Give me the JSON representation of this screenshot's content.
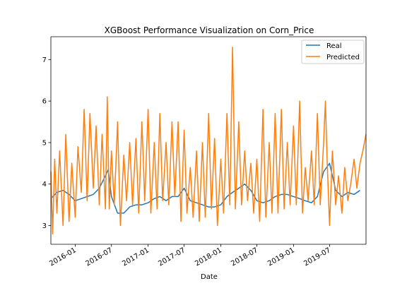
{
  "chart_data": {
    "type": "line",
    "title": "XGBoost Performance Visualization on Corn_Price",
    "xlabel": "Date",
    "ylabel": "",
    "x_range": [
      "2015-09-01",
      "2019-12-31"
    ],
    "ylim": [
      2.55,
      7.55
    ],
    "x_ticks": [
      "2016-01",
      "2016-07",
      "2017-01",
      "2017-07",
      "2018-01",
      "2018-07",
      "2019-01",
      "2019-07"
    ],
    "x_tick_dates": [
      "2016-01-01",
      "2016-07-01",
      "2017-01-01",
      "2017-07-01",
      "2018-01-01",
      "2018-07-01",
      "2019-01-01",
      "2019-07-01"
    ],
    "y_ticks": [
      3,
      4,
      5,
      6,
      7
    ],
    "legend": {
      "placement": "top-right",
      "entries": [
        "Real",
        "Predicted"
      ]
    },
    "colors": {
      "Real": "#1f77b4",
      "Predicted": "#ff7f0e"
    },
    "series": [
      {
        "name": "Real",
        "x": [
          "2015-09-01",
          "2015-10-01",
          "2015-11-01",
          "2015-12-01",
          "2016-01-01",
          "2016-02-01",
          "2016-03-01",
          "2016-04-01",
          "2016-05-01",
          "2016-06-01",
          "2016-06-15",
          "2016-07-01",
          "2016-08-01",
          "2016-09-01",
          "2016-10-01",
          "2016-11-01",
          "2016-12-01",
          "2017-01-01",
          "2017-02-01",
          "2017-03-01",
          "2017-04-01",
          "2017-05-01",
          "2017-06-01",
          "2017-07-01",
          "2017-08-01",
          "2017-09-01",
          "2017-10-01",
          "2017-11-01",
          "2017-12-01",
          "2018-01-01",
          "2018-02-01",
          "2018-03-01",
          "2018-04-01",
          "2018-05-01",
          "2018-06-01",
          "2018-07-01",
          "2018-08-01",
          "2018-09-01",
          "2018-10-01",
          "2018-11-01",
          "2018-12-01",
          "2019-01-01",
          "2019-02-01",
          "2019-03-01",
          "2019-04-01",
          "2019-05-01",
          "2019-06-01",
          "2019-07-01",
          "2019-08-01",
          "2019-09-01",
          "2019-10-01",
          "2019-11-01",
          "2019-12-01"
        ],
        "values": [
          3.65,
          3.8,
          3.85,
          3.75,
          3.6,
          3.65,
          3.7,
          3.75,
          3.9,
          4.2,
          4.35,
          3.7,
          3.3,
          3.3,
          3.45,
          3.5,
          3.5,
          3.55,
          3.65,
          3.7,
          3.6,
          3.7,
          3.7,
          3.9,
          3.6,
          3.55,
          3.5,
          3.45,
          3.45,
          3.5,
          3.7,
          3.8,
          3.9,
          4.0,
          3.85,
          3.6,
          3.55,
          3.6,
          3.7,
          3.75,
          3.75,
          3.7,
          3.65,
          3.6,
          3.55,
          3.7,
          4.3,
          4.5,
          3.85,
          3.7,
          3.8,
          3.75,
          3.85
        ]
      },
      {
        "name": "Predicted",
        "x": [
          "2015-09-01",
          "2015-09-10",
          "2015-09-20",
          "2015-10-01",
          "2015-10-15",
          "2015-11-01",
          "2015-11-15",
          "2015-12-01",
          "2015-12-15",
          "2016-01-01",
          "2016-01-15",
          "2016-02-01",
          "2016-02-15",
          "2016-03-01",
          "2016-03-15",
          "2016-04-01",
          "2016-04-15",
          "2016-05-01",
          "2016-05-15",
          "2016-06-01",
          "2016-06-10",
          "2016-06-20",
          "2016-07-01",
          "2016-07-15",
          "2016-08-01",
          "2016-08-15",
          "2016-09-01",
          "2016-09-15",
          "2016-10-01",
          "2016-10-15",
          "2016-11-01",
          "2016-11-15",
          "2016-12-01",
          "2016-12-15",
          "2017-01-01",
          "2017-01-15",
          "2017-02-01",
          "2017-02-15",
          "2017-03-01",
          "2017-03-15",
          "2017-04-01",
          "2017-04-15",
          "2017-05-01",
          "2017-05-15",
          "2017-06-01",
          "2017-06-15",
          "2017-07-01",
          "2017-07-15",
          "2017-08-01",
          "2017-08-15",
          "2017-09-01",
          "2017-09-15",
          "2017-10-01",
          "2017-10-15",
          "2017-11-01",
          "2017-11-15",
          "2017-12-01",
          "2017-12-15",
          "2018-01-01",
          "2018-01-15",
          "2018-02-01",
          "2018-02-15",
          "2018-03-01",
          "2018-03-15",
          "2018-04-01",
          "2018-04-15",
          "2018-05-01",
          "2018-05-15",
          "2018-06-01",
          "2018-06-15",
          "2018-07-01",
          "2018-07-15",
          "2018-08-01",
          "2018-08-15",
          "2018-09-01",
          "2018-09-15",
          "2018-10-01",
          "2018-10-15",
          "2018-11-01",
          "2018-11-15",
          "2018-12-01",
          "2018-12-15",
          "2019-01-01",
          "2019-01-15",
          "2019-02-01",
          "2019-02-15",
          "2019-03-01",
          "2019-03-15",
          "2019-04-01",
          "2019-04-15",
          "2019-05-01",
          "2019-05-15",
          "2019-06-01",
          "2019-06-10",
          "2019-06-20",
          "2019-07-01",
          "2019-07-15",
          "2019-08-01",
          "2019-08-15",
          "2019-09-01",
          "2019-09-15",
          "2019-10-01",
          "2019-10-15",
          "2019-11-01",
          "2019-11-15",
          "2019-12-01",
          "2019-12-15",
          "2019-12-31"
        ],
        "values": [
          4.3,
          2.8,
          4.6,
          3.3,
          4.8,
          3.0,
          5.2,
          3.1,
          4.5,
          3.2,
          4.9,
          3.8,
          5.8,
          3.6,
          5.7,
          3.9,
          5.4,
          3.5,
          5.2,
          3.4,
          6.1,
          3.4,
          4.8,
          3.5,
          5.5,
          3.0,
          4.7,
          3.6,
          5.0,
          3.5,
          5.1,
          3.3,
          5.5,
          3.6,
          5.8,
          3.3,
          5.0,
          3.4,
          5.7,
          3.6,
          5.0,
          3.5,
          5.5,
          3.7,
          5.5,
          3.1,
          5.3,
          3.3,
          4.4,
          3.2,
          4.8,
          3.1,
          5.0,
          3.2,
          5.7,
          3.4,
          5.1,
          3.0,
          4.6,
          3.3,
          5.7,
          3.5,
          7.3,
          3.4,
          5.5,
          3.5,
          4.8,
          3.6,
          4.5,
          3.3,
          4.6,
          3.1,
          5.8,
          3.2,
          5.0,
          3.3,
          5.7,
          3.3,
          5.8,
          3.4,
          5.0,
          3.5,
          5.4,
          3.5,
          6.0,
          3.3,
          4.4,
          3.6,
          4.8,
          3.5,
          5.7,
          3.5,
          5.0,
          6.0,
          4.4,
          3.0,
          4.8,
          3.5,
          4.2,
          3.3,
          4.4,
          3.6,
          4.0,
          4.6,
          3.9,
          4.5,
          4.8,
          5.2
        ]
      }
    ]
  }
}
